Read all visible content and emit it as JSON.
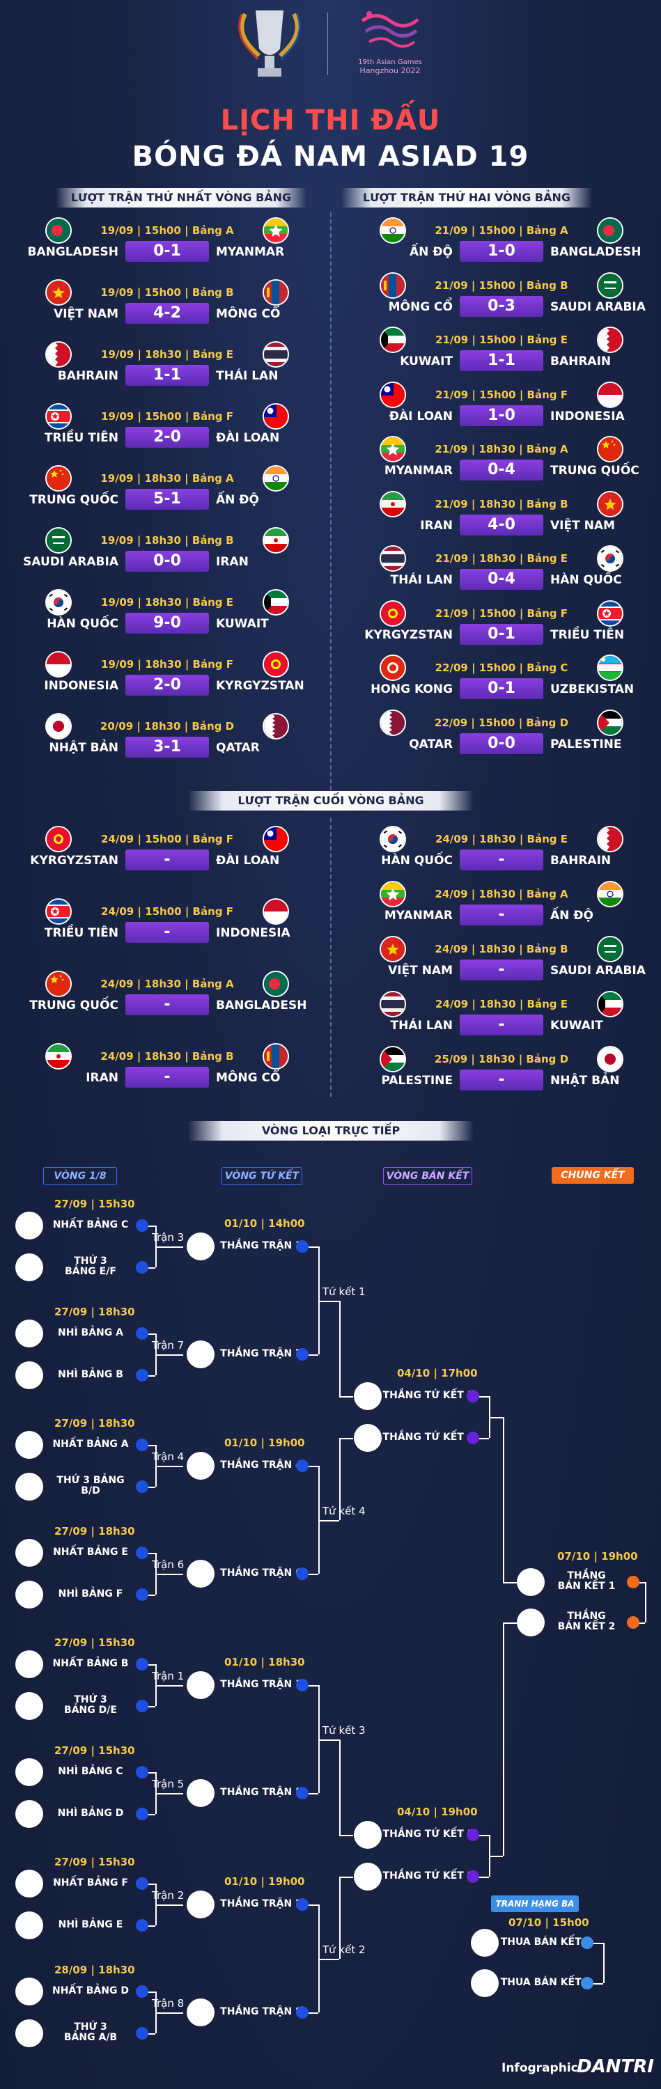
{
  "header": {
    "logo_text": [
      "19th Asian Games",
      "Hangzhou 2022"
    ],
    "title_line1": "LỊCH THI ĐẤU",
    "title_line2": "BÓNG ĐÁ NAM ASIAD 19"
  },
  "round1": {
    "label": "LƯỢT TRẬN THỨ NHẤT VÒNG BẢNG",
    "matches": [
      {
        "date": "19/09 | 15h00 | Bảng A",
        "home": "BANGLADESH",
        "away": "MYANMAR",
        "score": "0-1"
      },
      {
        "date": "19/09 | 15h00 | Bảng B",
        "home": "VIỆT NAM",
        "away": "MÔNG CỔ",
        "score": "4-2"
      },
      {
        "date": "19/09 | 18h30 | Bảng E",
        "home": "BAHRAIN",
        "away": "THÁI LAN",
        "score": "1-1"
      },
      {
        "date": "19/09 | 15h00 | Bảng F",
        "home": "TRIỀU TIÊN",
        "away": "ĐÀI LOAN",
        "score": "2-0"
      },
      {
        "date": "19/09 | 18h30 | Bảng A",
        "home": "TRUNG QUỐC",
        "away": "ẤN ĐỘ",
        "score": "5-1"
      },
      {
        "date": "19/09 | 18h30 | Bảng B",
        "home": "SAUDI ARABIA",
        "away": "IRAN",
        "score": "0-0"
      },
      {
        "date": "19/09 | 18h30 | Bảng E",
        "home": "HÀN QUỐC",
        "away": "KUWAIT",
        "score": "9-0"
      },
      {
        "date": "19/09 | 18h30 | Bảng F",
        "home": "INDONESIA",
        "away": "KYRGYZSTAN",
        "score": "2-0"
      },
      {
        "date": "20/09 | 18h30 | Bảng D",
        "home": "NHẬT BẢN",
        "away": "QATAR",
        "score": "3-1"
      }
    ]
  },
  "round2": {
    "label": "LƯỢT TRẬN THỨ HAI VÒNG BẢNG",
    "matches": [
      {
        "date": "21/09 | 15h00 | Bảng A",
        "home": "ẤN ĐỘ",
        "away": "BANGLADESH",
        "score": "1-0"
      },
      {
        "date": "21/09 | 15h00 | Bảng B",
        "home": "MÔNG CỔ",
        "away": "SAUDI ARABIA",
        "score": "0-3"
      },
      {
        "date": "21/09 | 15h00 | Bảng E",
        "home": "KUWAIT",
        "away": "BAHRAIN",
        "score": "1-1"
      },
      {
        "date": "21/09 | 15h00 | Bảng F",
        "home": "ĐÀI LOAN",
        "away": "INDONESIA",
        "score": "1-0"
      },
      {
        "date": "21/09 | 18h30 | Bảng A",
        "home": "MYANMAR",
        "away": "TRUNG QUỐC",
        "score": "0-4"
      },
      {
        "date": "21/09 | 18h30 | Bảng B",
        "home": "IRAN",
        "away": "VIỆT NAM",
        "score": "4-0"
      },
      {
        "date": "21/09 | 18h30 | Bảng E",
        "home": "THÁI LAN",
        "away": "HÀN QUỐC",
        "score": "0-4"
      },
      {
        "date": "21/09 | 15h00 | Bảng F",
        "home": "KYRGYZSTAN",
        "away": "TRIỀU TIÊN",
        "score": "0-1"
      },
      {
        "date": "22/09 | 15h00 | Bảng C",
        "home": "HONG KONG",
        "away": "UZBEKISTAN",
        "score": "0-1"
      },
      {
        "date": "22/09 | 15h00 | Bảng D",
        "home": "QATAR",
        "away": "PALESTINE",
        "score": "0-0"
      }
    ]
  },
  "round3": {
    "label": "LƯỢT TRẬN CUỐI VÒNG BẢNG",
    "left": [
      {
        "date": "24/09 | 15h00 | Bảng F",
        "home": "KYRGYZSTAN",
        "away": "ĐÀI LOAN",
        "score": "-"
      },
      {
        "date": "24/09 | 15h00 | Bảng F",
        "home": "TRIỀU TIÊN",
        "away": "INDONESIA",
        "score": "-"
      },
      {
        "date": "24/09 | 18h30 | Bảng A",
        "home": "TRUNG QUỐC",
        "away": "BANGLADESH",
        "score": "-"
      },
      {
        "date": "24/09 | 18h30 | Bảng B",
        "home": "IRAN",
        "away": "MÔNG CỔ",
        "score": "-"
      }
    ],
    "right": [
      {
        "date": "24/09 | 18h30 | Bảng E",
        "home": "HÀN QUỐC",
        "away": "BAHRAIN",
        "score": "-"
      },
      {
        "date": "24/09 | 18h30 | Bảng A",
        "home": "MYANMAR",
        "away": "ẤN ĐỘ",
        "score": "-"
      },
      {
        "date": "24/09 | 18h30 | Bảng B",
        "home": "VIỆT NAM",
        "away": "SAUDI ARABIA",
        "score": "-"
      },
      {
        "date": "24/09 | 18h30 | Bảng E",
        "home": "THÁI LAN",
        "away": "KUWAIT",
        "score": "-"
      },
      {
        "date": "25/09 | 18h30 | Bảng D",
        "home": "PALESTINE",
        "away": "NHẬT BẢN",
        "score": "-"
      }
    ]
  },
  "knockout": {
    "label": "VÒNG LOẠI TRỰC TIẾP",
    "round_labels": [
      "VÒNG 1/8",
      "VÒNG TỨ KẾT",
      "VÒNG BÁN KẾT",
      "CHUNG KẾT"
    ],
    "r16": [
      {
        "date": "27/09 | 15h30",
        "a": "NHẤT BẢNG C",
        "b": "THỨ 3\nBẢNG E/F",
        "match": "Trận 3"
      },
      {
        "date": "27/09 | 18h30",
        "a": "NHÌ BẢNG A",
        "b": "NHÌ BẢNG B",
        "match": "Trận 7"
      },
      {
        "date": "27/09 | 18h30",
        "a": "NHẤT BẢNG A",
        "b": "THỨ 3 BẢNG\nB/D",
        "match": "Trận 4"
      },
      {
        "date": "27/09 | 18h30",
        "a": "NHẤT BẢNG E",
        "b": "NHÌ BẢNG F",
        "match": "Trận 6"
      },
      {
        "date": "27/09 | 15h30",
        "a": "NHẤT BẢNG B",
        "b": "THỨ 3\nBẢNG D/E",
        "match": "Trận 1"
      },
      {
        "date": "27/09 | 15h30",
        "a": "NHÌ BẢNG C",
        "b": "NHÌ BẢNG D",
        "match": "Trận 5"
      },
      {
        "date": "27/09 | 15h30",
        "a": "NHẤT BẢNG F",
        "b": "NHÌ BẢNG E",
        "match": "Trận 2"
      },
      {
        "date": "28/09 | 18h30",
        "a": "NHẤT BẢNG D",
        "b": "THỨ 3\nBẢNG A/B",
        "match": "Trận 8"
      }
    ],
    "qf": [
      {
        "date": "01/10 | 14h00",
        "a": "THẮNG TRẬN 3",
        "b": "THẮNG TRẬN 7",
        "match": "Tứ kết 1"
      },
      {
        "date": "01/10 | 19h00",
        "a": "THẮNG TRẬN 4",
        "b": "THẮNG TRẬN 6",
        "match": "Tứ kết 4"
      },
      {
        "date": "01/10 | 18h30",
        "a": "THẮNG TRẬN 1",
        "b": "THẮNG TRẬN 5",
        "match": "Tứ kết 3"
      },
      {
        "date": "01/10 | 19h00",
        "a": "THẮNG TRẬN 2",
        "b": "THẮNG TRẬN 8",
        "match": "Tứ kết 2"
      }
    ],
    "sf": [
      {
        "date": "04/10 | 17h00",
        "a": "THẮNG TỨ KẾT 1",
        "b": "THẮNG TỨ KẾT 4"
      },
      {
        "date": "04/10 | 19h00",
        "a": "THẮNG TỨ KẾT 3",
        "b": "THẮNG TỨ KẾT 2"
      }
    ],
    "final": {
      "date": "07/10 | 19h00",
      "a": "THẮNG\nBÁN KẾT 1",
      "b": "THẮNG\nBÁN KẾT 2"
    },
    "third": {
      "label": "TRANH HẠNG BA",
      "date": "07/10 | 15h00",
      "a": "THUA BÁN KẾT 1",
      "b": "THUA BÁN KẾT 2"
    }
  },
  "footer": {
    "credit": "Infographic",
    "brand": "DANTRI"
  },
  "colors": {
    "accent_red": "#ff4d4d",
    "score_purple": "#7a36d6",
    "r16_blue": "#1e4fe0",
    "sf_purple": "#6a22d8",
    "final_orange": "#f36b1c",
    "third_blue": "#3b8ee8"
  }
}
